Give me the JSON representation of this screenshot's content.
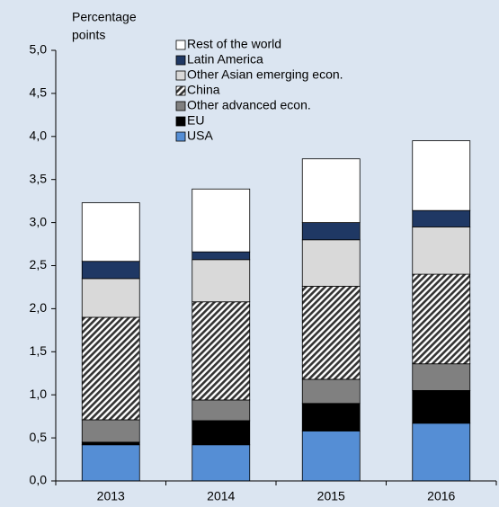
{
  "chart_data": {
    "type": "stacked_bar",
    "ylabel": [
      "Percentage",
      "points"
    ],
    "categories": [
      "2013",
      "2014",
      "2015",
      "2016"
    ],
    "series": [
      {
        "name": "USA",
        "color": "#558ed5",
        "values": [
          0.42,
          0.42,
          0.58,
          0.67
        ]
      },
      {
        "name": "EU",
        "color": "#000000",
        "values": [
          0.03,
          0.28,
          0.32,
          0.38
        ]
      },
      {
        "name": "Other advanced econ.",
        "color": "#808080",
        "values": [
          0.26,
          0.24,
          0.28,
          0.31
        ]
      },
      {
        "name": "China",
        "color": "#333333",
        "hatch": true,
        "values": [
          1.19,
          1.14,
          1.08,
          1.04
        ]
      },
      {
        "name": "Other Asian emerging econ.",
        "color": "#d9d9d9",
        "values": [
          0.45,
          0.49,
          0.54,
          0.55
        ]
      },
      {
        "name": "Latin America",
        "color": "#1f3864",
        "values": [
          0.2,
          0.09,
          0.2,
          0.19
        ]
      },
      {
        "name": "Rest of the world",
        "color": "#ffffff",
        "values": [
          0.68,
          0.73,
          0.74,
          0.81
        ]
      }
    ],
    "ylim": [
      0,
      5
    ],
    "yticks": [
      {
        "value": 0,
        "label": "0,0"
      },
      {
        "value": 0.5,
        "label": "0,5"
      },
      {
        "value": 1,
        "label": "1,0"
      },
      {
        "value": 1.5,
        "label": "1,5"
      },
      {
        "value": 2,
        "label": "2,0"
      },
      {
        "value": 2.5,
        "label": "2,5"
      },
      {
        "value": 3,
        "label": "3,0"
      },
      {
        "value": 3.5,
        "label": "3,5"
      },
      {
        "value": 4,
        "label": "4,0"
      },
      {
        "value": 4.5,
        "label": "4,5"
      },
      {
        "value": 5,
        "label": "5,0"
      }
    ],
    "legend": "top-left",
    "legend_order": "reversed"
  }
}
